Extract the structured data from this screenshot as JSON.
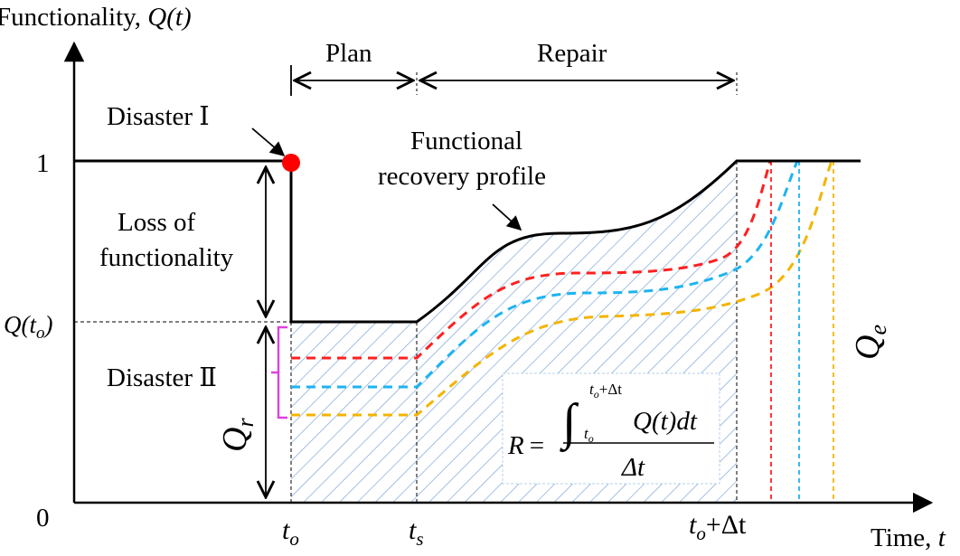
{
  "labels": {
    "y_axis": "Functionality, ",
    "y_axis_var": "Q(t)",
    "x_axis": "Time, ",
    "x_axis_var": "t",
    "tick_one": "1",
    "tick_zero": "0",
    "q_to": "Q(t",
    "q_to_sub": "o",
    "q_to_close": ")",
    "plan": "Plan",
    "repair": "Repair",
    "disaster_1": "Disaster  Ⅰ",
    "disaster_2": "Disaster  Ⅱ",
    "loss_line1": "Loss of",
    "loss_line2": "functionality",
    "recovery_line1": "Functional",
    "recovery_line2": "recovery profile",
    "qr_main": "Q",
    "qr_sub": "r",
    "qe_main": "Q",
    "qe_sub": "e",
    "t_o_main": "t",
    "t_o_sub": "o",
    "t_s_main": "t",
    "t_s_sub": "s",
    "t_end_main": "t",
    "t_end_sub": "o",
    "t_end_tail": "+Δt"
  },
  "formula": {
    "lhs": "R =",
    "integrand": "Q(t)dt",
    "upper_main": "t",
    "upper_sub": "o",
    "upper_tail": "+Δt",
    "lower_main": "t",
    "lower_sub": "o",
    "denominator": "Δt"
  },
  "colors": {
    "main_curve": "#000000",
    "red": "#ff2020",
    "blue": "#1eb4f0",
    "yellow": "#f4b400",
    "magenta": "#e040e0",
    "hatch": "#7ea6d6",
    "dot": "#ff0000"
  }
}
